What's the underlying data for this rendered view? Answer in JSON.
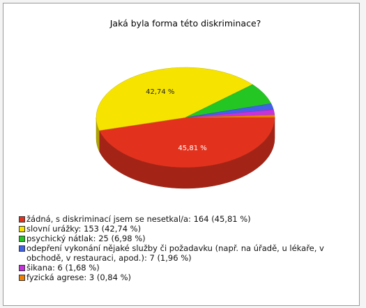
{
  "chart_data": {
    "type": "pie3d",
    "title": "Jaká byla forma této diskriminace?",
    "categories": [
      "žádná, s diskriminací jsem se nesetkal/a: 164 (45,81 %)",
      "slovní urážky: 153 (42,74 %)",
      "psychický nátlak: 25 (6,98 %)",
      "odepření vykonání nějaké služby či požadavku (např. na úřadě, u lékaře, v obchodě, v restauraci, apod.): 7 (1,96 %)",
      "šikana: 6 (1,68 %)",
      "fyzická agrese: 3 (0,84 %)"
    ],
    "values": [
      164,
      153,
      25,
      7,
      6,
      3
    ],
    "value_labels": [
      "45,81 %",
      "42,74 %",
      null,
      null,
      null,
      null
    ],
    "colors": [
      "#e2321e",
      "#f6e400",
      "#24c624",
      "#4262e6",
      "#c632dc",
      "#f07e00"
    ],
    "legend": "bottom-left"
  }
}
